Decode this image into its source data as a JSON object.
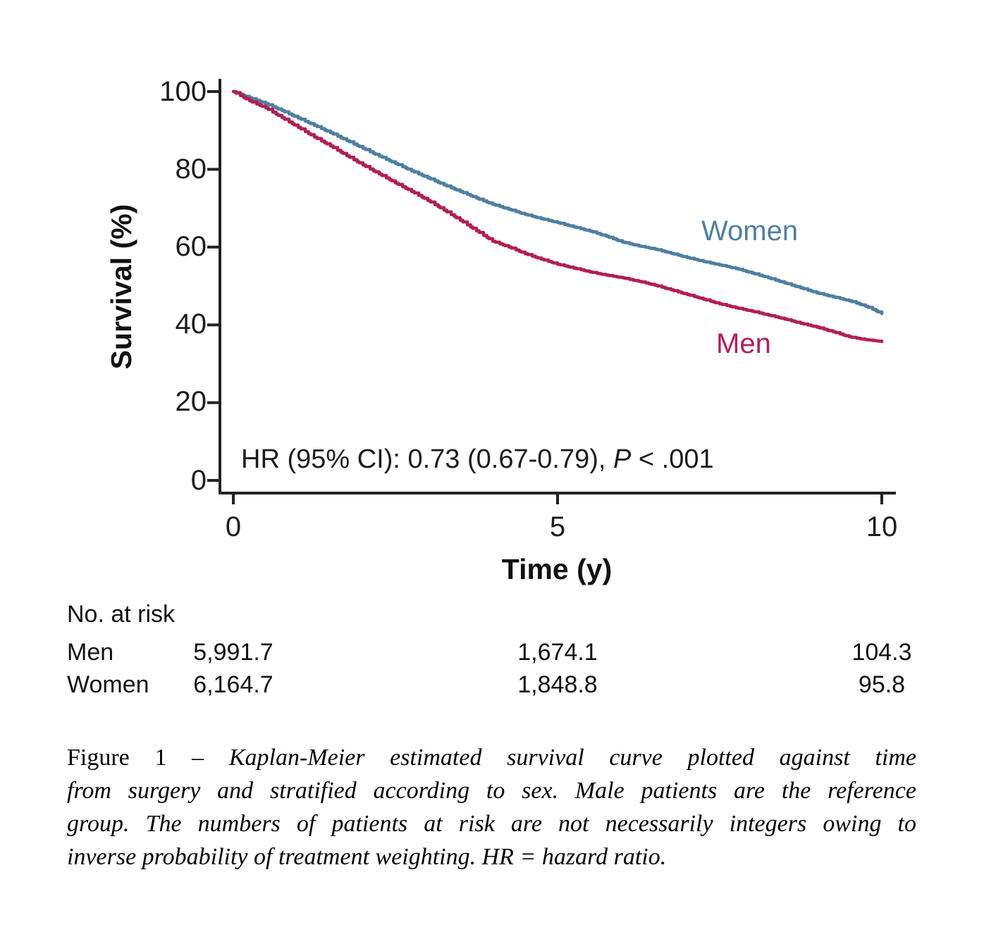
{
  "chart_data": {
    "type": "line",
    "subtype": "kaplan-meier-step",
    "title": "",
    "xlabel": "Time (y)",
    "ylabel": "Survival (%)",
    "xlim": [
      0,
      10
    ],
    "ylim": [
      0,
      100
    ],
    "xticks": [
      0,
      5,
      10
    ],
    "yticks": [
      0,
      20,
      40,
      60,
      80,
      100
    ],
    "grid": false,
    "legend_position": "inline-labels",
    "annotation": {
      "pre": "HR (95% CI): 0.73 (0.67-0.79), ",
      "p": "P",
      "post": " < .001"
    },
    "series": [
      {
        "name": "Women",
        "color": "#4f7fa1",
        "x": [
          0,
          0.25,
          0.5,
          0.75,
          1,
          1.25,
          1.5,
          1.75,
          2,
          2.25,
          2.5,
          2.75,
          3,
          3.25,
          3.5,
          3.75,
          4,
          4.25,
          4.5,
          4.75,
          5,
          5.25,
          5.5,
          5.75,
          6,
          6.25,
          6.5,
          6.75,
          7,
          7.25,
          7.5,
          7.75,
          8,
          8.25,
          8.5,
          8.75,
          9,
          9.25,
          9.5,
          9.75,
          10
        ],
        "y": [
          100,
          98.4,
          96.9,
          95.1,
          93.2,
          91.3,
          89.4,
          87.4,
          85.4,
          83.4,
          81.5,
          79.6,
          77.8,
          76.0,
          74.3,
          72.6,
          71.0,
          69.7,
          68.4,
          67.3,
          66.3,
          65.2,
          64.1,
          62.8,
          61.3,
          60.3,
          59.5,
          58.4,
          57.3,
          56.3,
          55.4,
          54.5,
          53.3,
          52.1,
          50.8,
          49.5,
          48.2,
          47.2,
          46.2,
          44.8,
          42.9
        ]
      },
      {
        "name": "Men",
        "color": "#b02055",
        "x": [
          0,
          0.25,
          0.5,
          0.75,
          1,
          1.25,
          1.5,
          1.75,
          2,
          2.25,
          2.5,
          2.75,
          3,
          3.25,
          3.5,
          3.75,
          4,
          4.25,
          4.5,
          4.75,
          5,
          5.25,
          5.5,
          5.75,
          6,
          6.25,
          6.5,
          6.75,
          7,
          7.25,
          7.5,
          7.75,
          8,
          8.25,
          8.5,
          8.75,
          9,
          9.25,
          9.5,
          9.75,
          10
        ],
        "y": [
          100,
          97.6,
          95.8,
          93.3,
          90.8,
          88.3,
          86.0,
          83.5,
          81.1,
          78.8,
          76.5,
          74.3,
          72.0,
          69.5,
          66.9,
          64.2,
          61.5,
          60.0,
          58.3,
          56.9,
          55.6,
          54.6,
          53.6,
          52.8,
          52.1,
          51.2,
          50.2,
          49.0,
          47.8,
          46.6,
          45.4,
          44.4,
          43.5,
          42.5,
          41.5,
          40.4,
          39.4,
          38.2,
          36.9,
          36.2,
          35.7
        ]
      }
    ]
  },
  "labels": {
    "women": "Women",
    "men": "Men"
  },
  "risk_table": {
    "header": "No. at risk",
    "time_points": [
      0,
      5,
      10
    ],
    "rows": [
      {
        "label": "Men",
        "values": [
          "5,991.7",
          "1,674.1",
          "104.3"
        ]
      },
      {
        "label": "Women",
        "values": [
          "6,164.7",
          "1,848.8",
          "95.8"
        ]
      }
    ]
  },
  "caption": {
    "line1_prefix": "Figure 1 – ",
    "line1_rest": "Kaplan-Meier estimated survival curve plotted against time",
    "line2": "from surgery and stratified according to sex. Male patients are the reference",
    "line3": "group. The numbers of patients at risk are not necessarily integers owing to",
    "line4": "inverse probability of treatment weighting. HR = hazard ratio."
  },
  "colors": {
    "women": "#4f7fa1",
    "men": "#b02055",
    "axis": "#222222"
  }
}
